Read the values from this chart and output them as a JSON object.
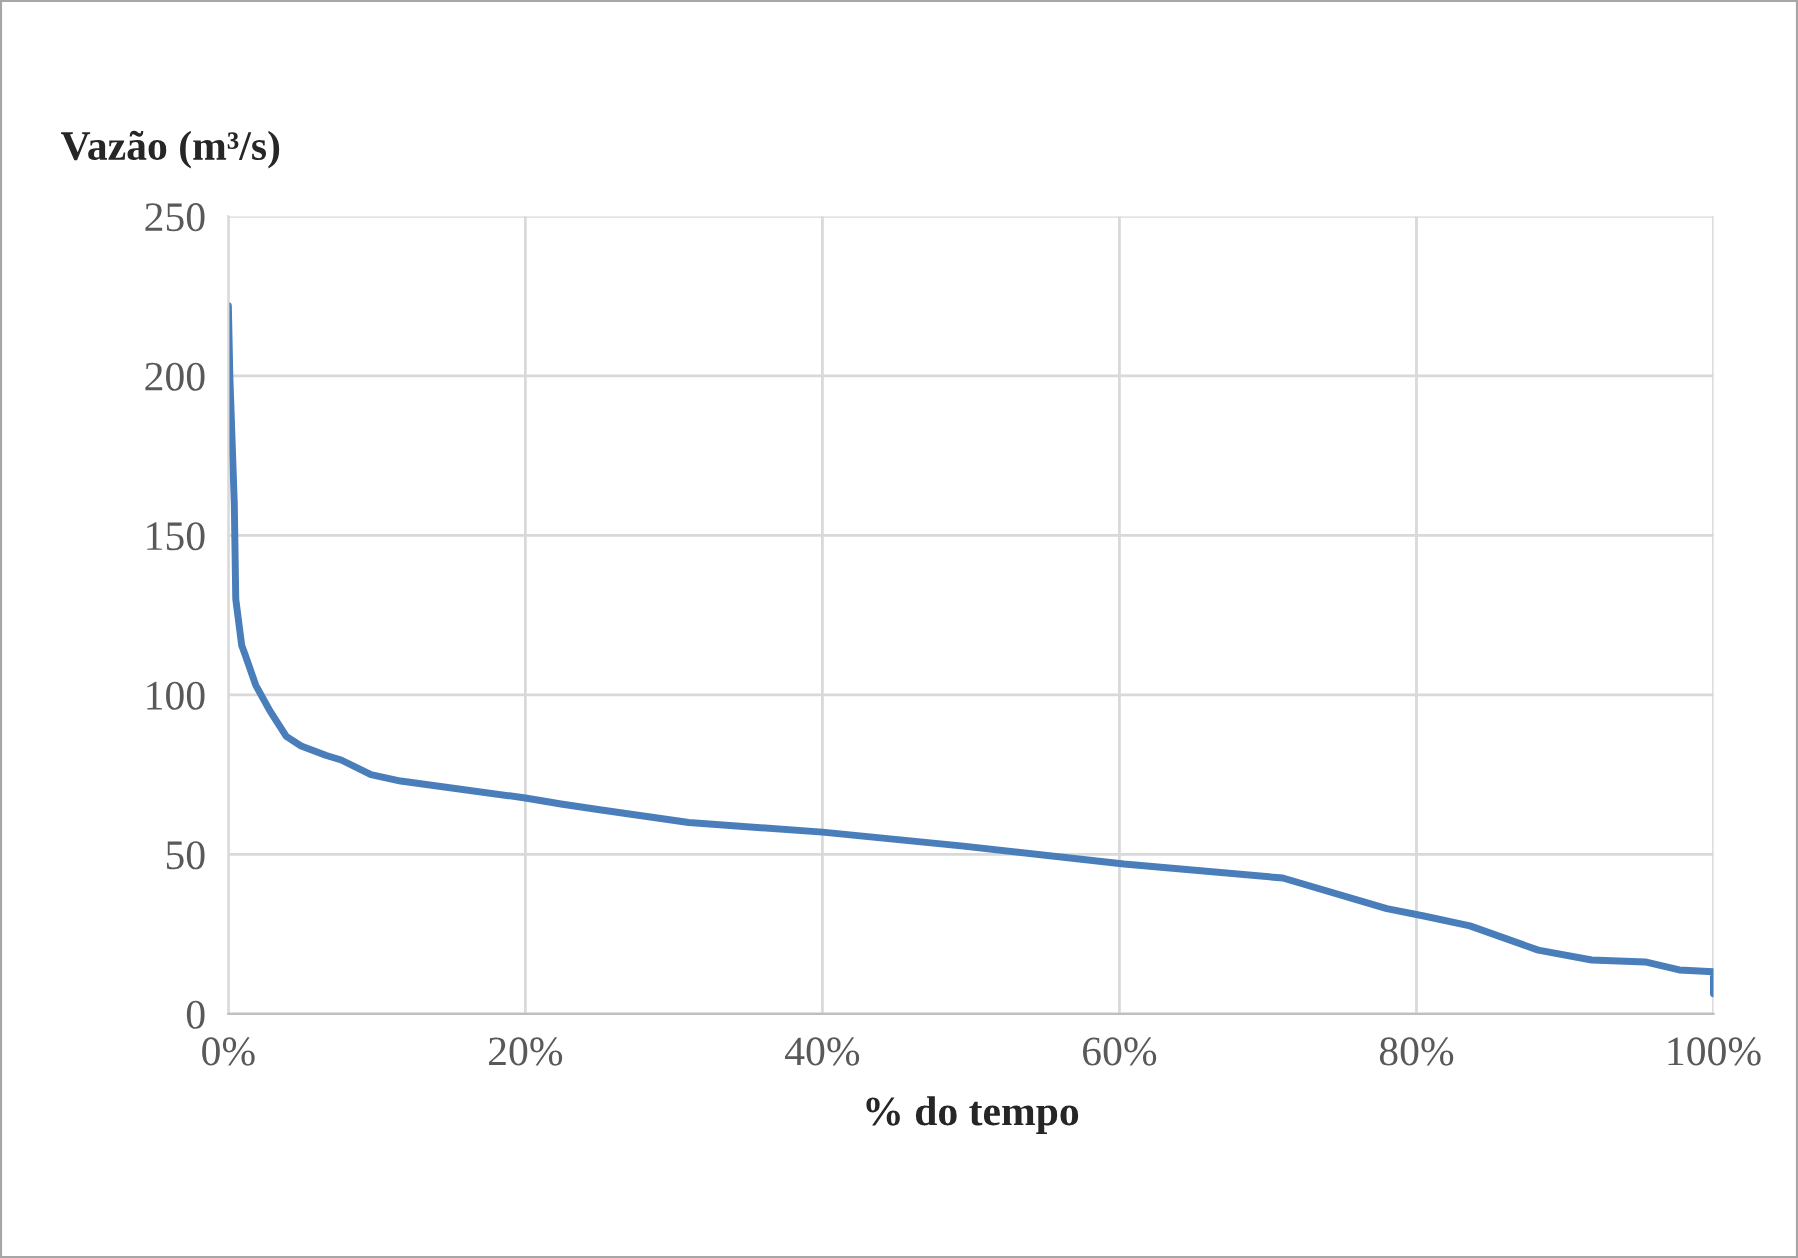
{
  "chart_data": {
    "type": "line",
    "ylabel": "Vazão (m³/s)",
    "xlabel": "% do tempo",
    "x": [
      0,
      0.1,
      0.4,
      0.5,
      0.9,
      1.1,
      1.85,
      2.8,
      3.9,
      4.9,
      6.6,
      7.6,
      9.6,
      11.6,
      20,
      22.4,
      25,
      31,
      40,
      49.5,
      60.3,
      71,
      78,
      80.5,
      83.6,
      88.2,
      91.8,
      95.4,
      97.7,
      100,
      100
    ],
    "series": [
      {
        "color": "#4a7ebb",
        "values": [
          222,
          200,
          160,
          130,
          115.5,
          113,
          103,
          95,
          87,
          84,
          81,
          79.6,
          75,
          73,
          67.7,
          65.8,
          64,
          60,
          57,
          52.6,
          47,
          42.6,
          33,
          30.7,
          27.6,
          20,
          16.9,
          16.3,
          13.8,
          13.2,
          6.3
        ]
      }
    ],
    "xlim": [
      0,
      100
    ],
    "ylim": [
      0,
      250
    ],
    "xticks": [
      {
        "value": 0,
        "label": "0%"
      },
      {
        "value": 20,
        "label": "20%"
      },
      {
        "value": 40,
        "label": "40%"
      },
      {
        "value": 60,
        "label": "60%"
      },
      {
        "value": 80,
        "label": "80%"
      },
      {
        "value": 100,
        "label": "100%"
      }
    ],
    "yticks": [
      0,
      50,
      100,
      150,
      200,
      250
    ],
    "grid": true,
    "marker": "none",
    "line_style": "solid",
    "legend": false
  }
}
